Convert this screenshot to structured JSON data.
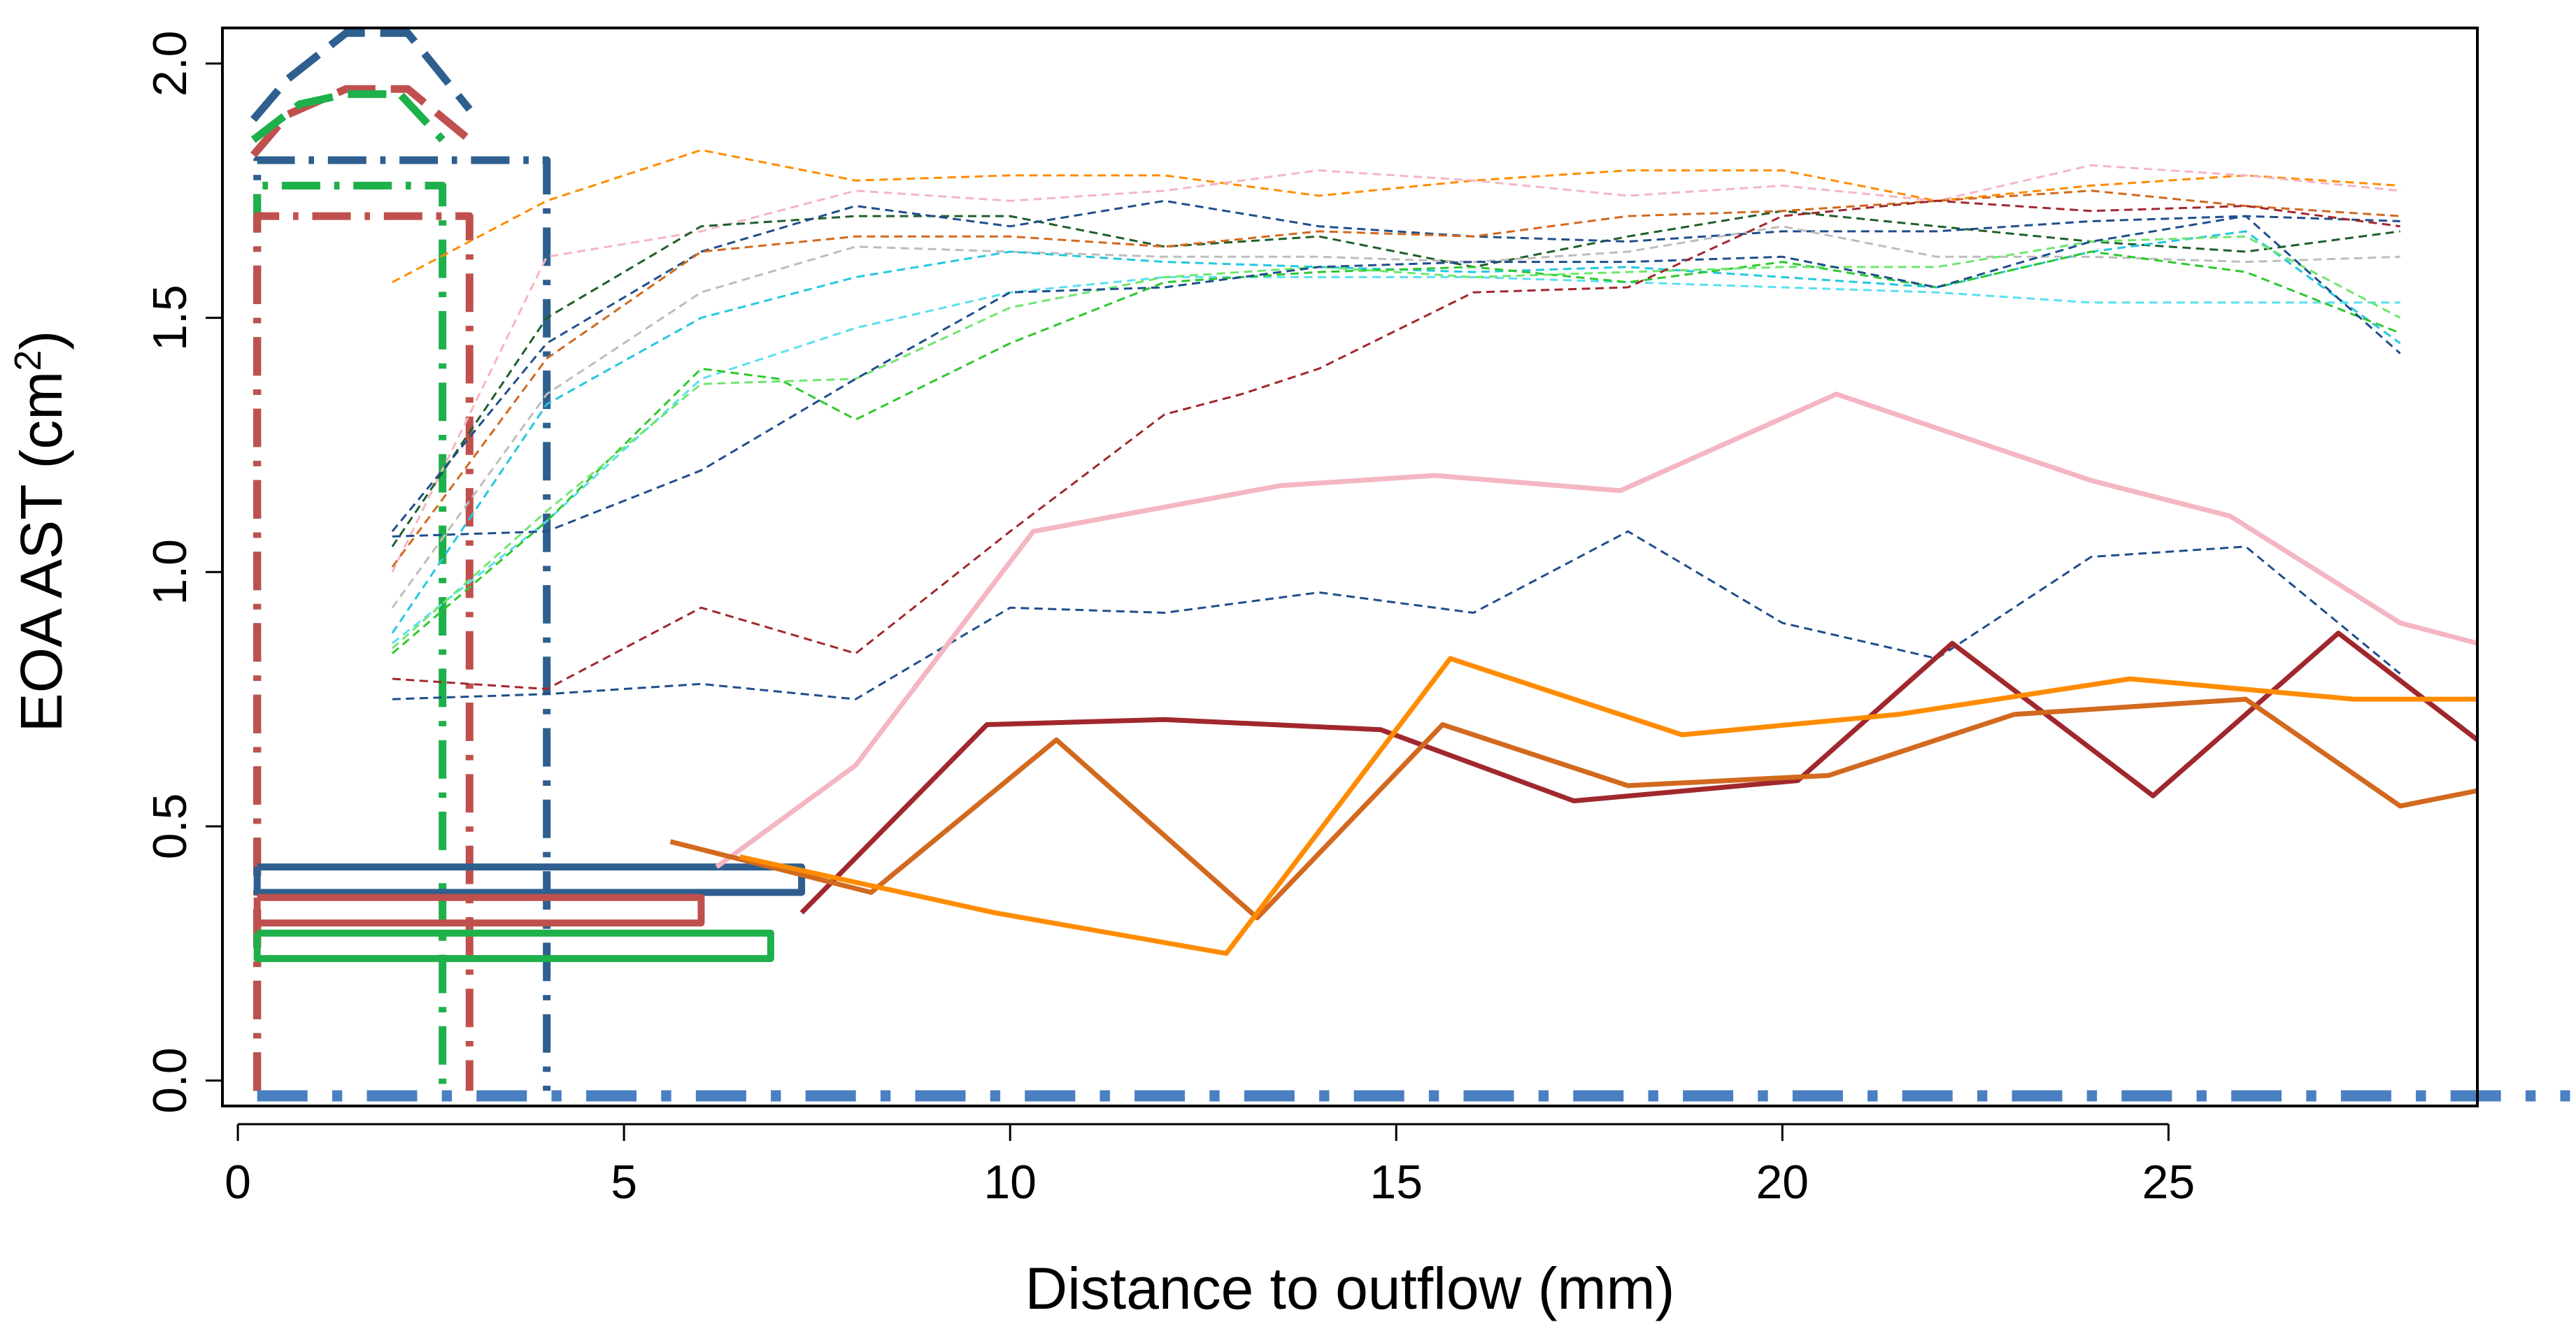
{
  "chart_data": {
    "type": "line",
    "title": "",
    "xlabel": "Distance to outflow (mm)",
    "ylabel_main": "EOA AST (cm",
    "ylabel_sup": "2",
    "ylabel_close": ")",
    "xlim": [
      -0.2,
      29
    ],
    "ylim": [
      -0.05,
      2.07
    ],
    "x_ticks": [
      0,
      5,
      10,
      15,
      20,
      25
    ],
    "x_tick_labels": [
      "0",
      "5",
      "10",
      "15",
      "20",
      "25"
    ],
    "y_ticks": [
      0.0,
      0.5,
      1.0,
      1.5,
      2.0
    ],
    "y_tick_labels": [
      "0.0",
      "0.5",
      "1.0",
      "1.5",
      "2.0"
    ],
    "series": [
      {
        "name": "dashed-orange-top",
        "color": "#ff8c00",
        "dash": "dashed",
        "width": 3,
        "x": [
          2,
          4,
          6,
          8,
          10,
          12,
          14,
          16,
          18,
          20,
          22,
          24,
          26,
          28
        ],
        "y": [
          1.57,
          1.73,
          1.83,
          1.77,
          1.78,
          1.78,
          1.74,
          1.77,
          1.79,
          1.79,
          1.73,
          1.76,
          1.78,
          1.76
        ]
      },
      {
        "name": "dashed-pink",
        "color": "#f4b6c2",
        "dash": "dashed",
        "width": 3,
        "x": [
          2,
          4,
          6,
          8,
          10,
          12,
          14,
          16,
          18,
          20,
          22,
          24,
          26,
          28
        ],
        "y": [
          1.0,
          1.62,
          1.67,
          1.75,
          1.73,
          1.75,
          1.79,
          1.77,
          1.74,
          1.76,
          1.73,
          1.8,
          1.78,
          1.75
        ]
      },
      {
        "name": "dashed-darkgreen",
        "color": "#1e5f2a",
        "dash": "dashed",
        "width": 3,
        "x": [
          2,
          4,
          6,
          8,
          10,
          12,
          14,
          16,
          18,
          20,
          22,
          24,
          26,
          28
        ],
        "y": [
          1.05,
          1.5,
          1.68,
          1.7,
          1.7,
          1.64,
          1.66,
          1.6,
          1.66,
          1.71,
          1.68,
          1.65,
          1.63,
          1.67
        ]
      },
      {
        "name": "dashed-navy",
        "color": "#1f4e8c",
        "dash": "dashed",
        "width": 3,
        "x": [
          2,
          4,
          6,
          8,
          10,
          12,
          14,
          16,
          18,
          20,
          22,
          24,
          26,
          28
        ],
        "y": [
          1.08,
          1.45,
          1.63,
          1.72,
          1.68,
          1.73,
          1.68,
          1.66,
          1.65,
          1.67,
          1.67,
          1.69,
          1.7,
          1.69
        ]
      },
      {
        "name": "dashed-darkorange",
        "color": "#d2691e",
        "dash": "dashed",
        "width": 3,
        "x": [
          2,
          4,
          6,
          8,
          10,
          12,
          14,
          16,
          18,
          20,
          22,
          24,
          26,
          28
        ],
        "y": [
          1.01,
          1.42,
          1.63,
          1.66,
          1.66,
          1.64,
          1.67,
          1.66,
          1.7,
          1.71,
          1.73,
          1.75,
          1.72,
          1.7
        ]
      },
      {
        "name": "dashed-gray",
        "color": "#bdbdbd",
        "dash": "dashed",
        "width": 3,
        "x": [
          2,
          4,
          6,
          8,
          10,
          12,
          14,
          16,
          18,
          20,
          22,
          24,
          26,
          28
        ],
        "y": [
          0.93,
          1.35,
          1.55,
          1.64,
          1.63,
          1.62,
          1.62,
          1.61,
          1.63,
          1.68,
          1.62,
          1.62,
          1.61,
          1.62
        ]
      },
      {
        "name": "dashed-cyan",
        "color": "#22c8e0",
        "dash": "dashed",
        "width": 3,
        "x": [
          2,
          4,
          6,
          8,
          10,
          12,
          14,
          16,
          18,
          20,
          22,
          24,
          26,
          28
        ],
        "y": [
          0.88,
          1.33,
          1.5,
          1.58,
          1.63,
          1.61,
          1.6,
          1.59,
          1.6,
          1.58,
          1.56,
          1.63,
          1.67,
          1.45
        ]
      },
      {
        "name": "dashed-cyan-2",
        "color": "#5ae0f0",
        "dash": "dashed",
        "width": 3,
        "x": [
          2,
          4,
          6,
          8,
          10,
          12,
          14,
          16,
          18,
          20,
          22,
          24,
          26,
          28
        ],
        "y": [
          0.86,
          1.1,
          1.38,
          1.48,
          1.55,
          1.58,
          1.58,
          1.58,
          1.57,
          1.56,
          1.55,
          1.53,
          1.53,
          1.53
        ]
      },
      {
        "name": "dashed-green",
        "color": "#2fc82f",
        "dash": "dashed",
        "width": 3,
        "x": [
          2,
          4,
          6,
          7,
          8,
          10,
          12,
          14,
          16,
          18,
          20,
          22,
          24,
          26,
          28
        ],
        "y": [
          0.84,
          1.1,
          1.4,
          1.38,
          1.3,
          1.45,
          1.57,
          1.59,
          1.6,
          1.57,
          1.61,
          1.56,
          1.63,
          1.59,
          1.47
        ]
      },
      {
        "name": "dashed-limegreen",
        "color": "#6ee66e",
        "dash": "dashed",
        "width": 3,
        "x": [
          2,
          4,
          6,
          8,
          10,
          12,
          14,
          16,
          18,
          20,
          22,
          24,
          26,
          28
        ],
        "y": [
          0.85,
          1.12,
          1.37,
          1.38,
          1.52,
          1.58,
          1.6,
          1.58,
          1.59,
          1.6,
          1.6,
          1.65,
          1.66,
          1.5
        ]
      },
      {
        "name": "dashed-navy-2",
        "color": "#1f4e8c",
        "dash": "dashed",
        "width": 3,
        "x": [
          2,
          4,
          6,
          8,
          10,
          12,
          14,
          16,
          18,
          20,
          22,
          24,
          26,
          28
        ],
        "y": [
          1.07,
          1.08,
          1.2,
          1.38,
          1.55,
          1.56,
          1.6,
          1.61,
          1.61,
          1.62,
          1.56,
          1.65,
          1.7,
          1.43
        ]
      },
      {
        "name": "dashed-darkred",
        "color": "#a0282d",
        "dash": "dashed",
        "width": 3,
        "x": [
          2,
          4,
          6,
          8,
          10,
          12,
          13,
          14,
          16,
          18,
          20,
          22,
          24,
          26,
          28
        ],
        "y": [
          0.79,
          0.77,
          0.93,
          0.84,
          1.08,
          1.31,
          1.35,
          1.4,
          1.55,
          1.56,
          1.7,
          1.73,
          1.71,
          1.72,
          1.68
        ]
      },
      {
        "name": "dashed-blue-low",
        "color": "#1f4e8c",
        "dash": "dashed",
        "width": 3,
        "x": [
          2,
          4,
          6,
          8,
          10,
          12,
          14,
          16,
          18,
          20,
          22,
          24,
          26,
          28
        ],
        "y": [
          0.75,
          0.76,
          0.78,
          0.75,
          0.93,
          0.92,
          0.96,
          0.92,
          1.08,
          0.9,
          0.83,
          1.03,
          1.05,
          0.8
        ]
      },
      {
        "name": "solid-pink",
        "color": "#f4b6c2",
        "dash": "solid",
        "width": 7,
        "x": [
          6.2,
          8,
          10.3,
          13.5,
          15.5,
          17.9,
          20.7,
          24,
          25.8,
          28,
          29
        ],
        "y": [
          0.42,
          0.62,
          1.08,
          1.17,
          1.19,
          1.16,
          1.35,
          1.18,
          1.11,
          0.9,
          0.86
        ]
      },
      {
        "name": "solid-darkred",
        "color": "#a0282d",
        "dash": "solid",
        "width": 7,
        "x": [
          7.3,
          9.7,
          12,
          14.8,
          17.3,
          20.2,
          22.2,
          24.8,
          27.2,
          29
        ],
        "y": [
          0.33,
          0.7,
          0.71,
          0.69,
          0.55,
          0.59,
          0.86,
          0.56,
          0.88,
          0.67
        ]
      },
      {
        "name": "solid-chocolate",
        "color": "#d2691e",
        "dash": "solid",
        "width": 7,
        "x": [
          5.6,
          8.2,
          10.6,
          13.2,
          15.6,
          18,
          20.6,
          23,
          26,
          28,
          29
        ],
        "y": [
          0.47,
          0.37,
          0.67,
          0.32,
          0.7,
          0.58,
          0.6,
          0.72,
          0.75,
          0.54,
          0.57
        ]
      },
      {
        "name": "solid-orange",
        "color": "#ff8c00",
        "dash": "solid",
        "width": 7,
        "x": [
          6.5,
          9.8,
          12.8,
          15.7,
          18.7,
          21.5,
          24.5,
          27.4,
          29
        ],
        "y": [
          0.44,
          0.33,
          0.25,
          0.83,
          0.68,
          0.72,
          0.79,
          0.75,
          0.75
        ]
      }
    ],
    "shapes": [
      {
        "name": "box-navy-dashdot",
        "color": "#2e5f8f",
        "dash": "dashdot",
        "width": 11,
        "x": [
          0.25,
          0.25,
          4.0,
          4.0
        ],
        "y": [
          -0.02,
          1.81,
          1.81,
          -0.02
        ]
      },
      {
        "name": "box-green-dashdot",
        "color": "#1eb04a",
        "dash": "dashdot",
        "width": 11,
        "x": [
          0.25,
          0.25,
          2.65,
          2.65
        ],
        "y": [
          -0.02,
          1.76,
          1.76,
          -0.02
        ]
      },
      {
        "name": "box-red-dashdot",
        "color": "#c0504d",
        "dash": "dashdot",
        "width": 11,
        "x": [
          0.25,
          0.25,
          3.0,
          3.0
        ],
        "y": [
          -0.02,
          1.7,
          1.7,
          -0.02
        ]
      },
      {
        "name": "hump-navy-dashed",
        "color": "#2e5f8f",
        "dash": "longdash",
        "width": 11,
        "x": [
          0.2,
          0.65,
          1.4,
          2.2,
          3.0
        ],
        "y": [
          1.89,
          1.97,
          2.06,
          2.06,
          1.91
        ]
      },
      {
        "name": "hump-red-dashed",
        "color": "#c0504d",
        "dash": "longdash",
        "width": 11,
        "x": [
          0.2,
          0.65,
          1.4,
          2.2,
          3.0
        ],
        "y": [
          1.82,
          1.9,
          1.95,
          1.95,
          1.85
        ]
      },
      {
        "name": "hump-green-dashed",
        "color": "#1eb04a",
        "dash": "longdash",
        "width": 11,
        "x": [
          0.2,
          0.8,
          1.4,
          2.1,
          2.65
        ],
        "y": [
          1.85,
          1.92,
          1.94,
          1.94,
          1.85
        ]
      },
      {
        "name": "bar-navy-outline",
        "color": "#2e5f8f",
        "dash": "solid",
        "width": 10,
        "x": [
          0.25,
          7.3,
          7.3,
          0.25,
          0.25
        ],
        "y": [
          0.42,
          0.42,
          0.37,
          0.37,
          0.42
        ]
      },
      {
        "name": "bar-red-outline",
        "color": "#c0504d",
        "dash": "solid",
        "width": 10,
        "x": [
          0.25,
          6.0,
          6.0,
          0.25,
          0.25
        ],
        "y": [
          0.36,
          0.36,
          0.31,
          0.31,
          0.36
        ]
      },
      {
        "name": "bar-green-outline",
        "color": "#1eb04a",
        "dash": "solid",
        "width": 10,
        "x": [
          0.25,
          6.9,
          6.9,
          0.25,
          0.25
        ],
        "y": [
          0.29,
          0.29,
          0.24,
          0.24,
          0.29
        ]
      },
      {
        "name": "baseline-blue-dashdot",
        "color": "#4a7fc1",
        "dash": "dashdot-heavy",
        "width": 16,
        "x": [
          0.25,
          30.2
        ],
        "y": [
          -0.03,
          -0.03
        ]
      }
    ]
  }
}
